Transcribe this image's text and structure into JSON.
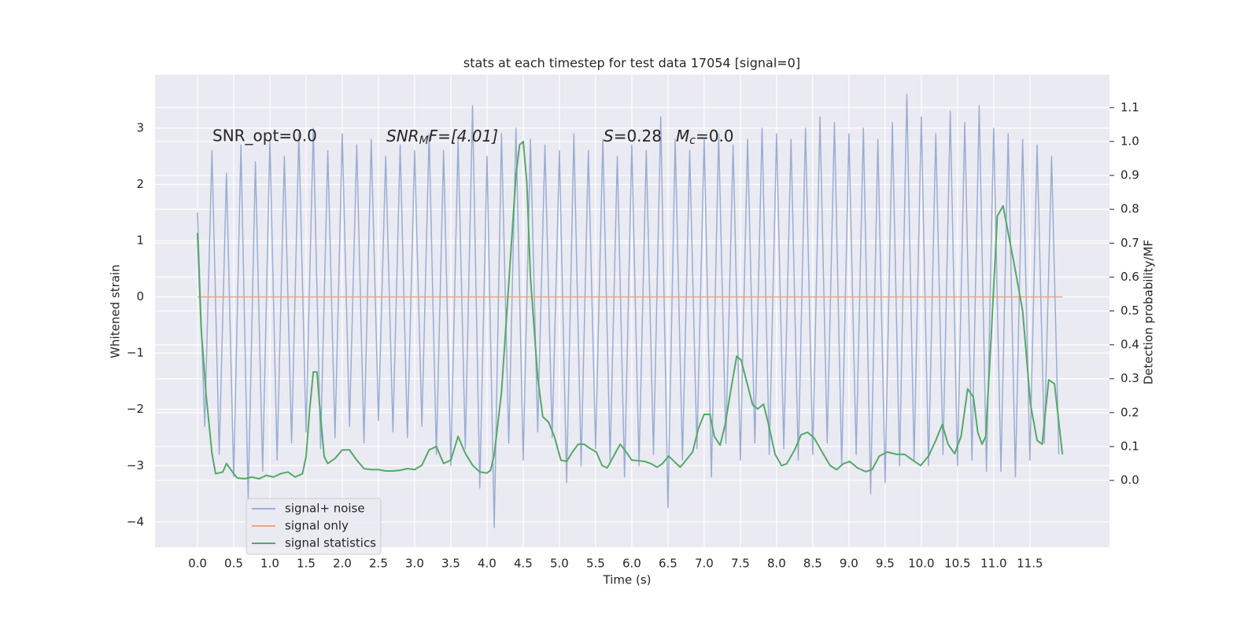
{
  "chart_data": {
    "type": "line",
    "title": "stats at each timestep for test data 17054 [signal=0]",
    "xlabel": "Time (s)",
    "ylabel": "Whitened strain",
    "y2label": "Detection probability/MF",
    "annotations": {
      "snr_opt": "SNR_opt=0.0",
      "snr_mf": [
        "SNR",
        "M",
        "F=[4.01]"
      ],
      "s": [
        "S",
        "=0.28"
      ],
      "mc": [
        "M",
        "c",
        "=0.0"
      ]
    },
    "xlim": [
      -0.587,
      12.6
    ],
    "ylim": [
      -4.45,
      3.95
    ],
    "y2lim": [
      -0.197,
      1.197
    ],
    "xticks": [
      {
        "value": 0,
        "label": "0.0"
      },
      0.5,
      {
        "value": 1,
        "label": "1.0"
      },
      1.5,
      {
        "value": 2,
        "label": "2.0"
      },
      2.5,
      {
        "value": 3,
        "label": "3.0"
      },
      3.5,
      {
        "value": 4,
        "label": "4.0"
      },
      4.5,
      {
        "value": 5,
        "label": "5.0"
      },
      5.5,
      {
        "value": 6,
        "label": "6.0"
      },
      6.5,
      {
        "value": 7,
        "label": "7.0"
      },
      7.5,
      {
        "value": 8,
        "label": "8.0"
      },
      8.5,
      {
        "value": 9,
        "label": "9.0"
      },
      9.5,
      {
        "value": 10,
        "label": "10.0"
      },
      10.5,
      {
        "value": 11,
        "label": "11.0"
      },
      11.5
    ],
    "yticks": [
      {
        "value": -4,
        "label": "−4"
      },
      {
        "value": -3,
        "label": "−3"
      },
      {
        "value": -2,
        "label": "−2"
      },
      {
        "value": -1,
        "label": "−1"
      },
      0,
      1,
      2,
      3
    ],
    "y2ticks": [
      {
        "value": 0,
        "label": "0.0"
      },
      0.1,
      0.2,
      0.3,
      0.4,
      0.5,
      0.6,
      0.7,
      0.8,
      0.9,
      {
        "value": 1,
        "label": "1.0"
      },
      1.1
    ],
    "grid": true,
    "legend": "lower left",
    "series": [
      {
        "name": "signal+ noise",
        "color": "#9badd3",
        "x": [
          0,
          0.1,
          0.2,
          0.3,
          0.4,
          0.5,
          0.6,
          0.7,
          0.8,
          0.9,
          1,
          1.1,
          1.2,
          1.3,
          1.4,
          1.5,
          1.6,
          1.7,
          1.8,
          1.9,
          2,
          2.1,
          2.2,
          2.3,
          2.4,
          2.5,
          2.6,
          2.7,
          2.8,
          2.9,
          3,
          3.1,
          3.2,
          3.3,
          3.4,
          3.5,
          3.6,
          3.7,
          3.8,
          3.9,
          4,
          4.1,
          4.2,
          4.3,
          4.4,
          4.5,
          4.6,
          4.7,
          4.8,
          4.9,
          5,
          5.1,
          5.2,
          5.3,
          5.4,
          5.5,
          5.6,
          5.7,
          5.8,
          5.9,
          6,
          6.1,
          6.2,
          6.3,
          6.4,
          6.5,
          6.6,
          6.7,
          6.8,
          6.9,
          7,
          7.1,
          7.2,
          7.3,
          7.4,
          7.5,
          7.6,
          7.7,
          7.8,
          7.9,
          8,
          8.1,
          8.2,
          8.3,
          8.4,
          8.5,
          8.6,
          8.7,
          8.8,
          8.9,
          9,
          9.1,
          9.2,
          9.3,
          9.4,
          9.5,
          9.6,
          9.7,
          9.8,
          9.9,
          10,
          10.1,
          10.2,
          10.3,
          10.4,
          10.5,
          10.6,
          10.7,
          10.8,
          10.9,
          11,
          11.1,
          11.2,
          11.3,
          11.4,
          11.5,
          11.6,
          11.7,
          11.8,
          11.9
        ],
        "values": [
          1.5,
          -2.3,
          2.6,
          -2.8,
          2.2,
          -3.2,
          2.7,
          -3.6,
          2.4,
          -3.1,
          2.8,
          -2.9,
          2.5,
          -2.6,
          2.9,
          -2.4,
          3.0,
          -2.7,
          2.6,
          -2.5,
          2.9,
          -2.3,
          2.7,
          -2.6,
          2.8,
          -2.2,
          2.5,
          -2.4,
          2.7,
          -2.5,
          2.6,
          -2.3,
          2.9,
          -2.8,
          2.6,
          -3.0,
          2.8,
          -2.7,
          3.4,
          -3.4,
          2.5,
          -4.1,
          2.9,
          -2.6,
          3.0,
          -2.9,
          2.8,
          -2.4,
          2.7,
          -2.5,
          2.6,
          -3.3,
          2.9,
          -3.0,
          2.6,
          -2.7,
          2.8,
          -2.9,
          2.5,
          -3.2,
          2.7,
          -3.0,
          2.6,
          -2.8,
          3.2,
          -3.75,
          2.8,
          -2.9,
          2.6,
          -2.7,
          2.8,
          -3.2,
          2.9,
          -2.6,
          2.7,
          -2.9,
          2.8,
          -2.6,
          3.0,
          -2.8,
          2.9,
          -2.7,
          2.8,
          -2.9,
          3.0,
          -2.8,
          3.2,
          -2.6,
          3.1,
          -3.0,
          2.9,
          -2.8,
          3.0,
          -3.5,
          2.8,
          -3.3,
          3.1,
          -3.0,
          3.6,
          -2.9,
          3.2,
          -3.0,
          2.9,
          -2.8,
          3.3,
          -3.0,
          3.1,
          -2.9,
          3.4,
          -3.1,
          3.0,
          -3.1,
          2.9,
          -3.2,
          2.8,
          -2.9,
          2.7,
          -2.6,
          2.5,
          -2.8
        ]
      },
      {
        "name": "signal only",
        "color": "#e8a888",
        "x": [
          0,
          11.95
        ],
        "values": [
          0,
          0
        ]
      },
      {
        "name": "signal statistics",
        "color": "#55a868",
        "axis": "y2",
        "x": [
          0,
          0.05,
          0.12,
          0.2,
          0.25,
          0.35,
          0.4,
          0.5,
          0.55,
          0.65,
          0.75,
          0.85,
          0.95,
          1.05,
          1.15,
          1.25,
          1.35,
          1.45,
          1.5,
          1.55,
          1.6,
          1.65,
          1.7,
          1.75,
          1.8,
          1.9,
          2.0,
          2.1,
          2.2,
          2.3,
          2.4,
          2.5,
          2.6,
          2.7,
          2.8,
          2.9,
          3.0,
          3.1,
          3.2,
          3.3,
          3.4,
          3.5,
          3.6,
          3.7,
          3.8,
          3.9,
          4.0,
          4.05,
          4.1,
          4.2,
          4.3,
          4.4,
          4.45,
          4.5,
          4.55,
          4.6,
          4.7,
          4.77,
          4.85,
          4.93,
          5.02,
          5.1,
          5.18,
          5.26,
          5.34,
          5.42,
          5.51,
          5.59,
          5.66,
          5.75,
          5.84,
          5.91,
          6.0,
          6.1,
          6.18,
          6.27,
          6.35,
          6.42,
          6.51,
          6.6,
          6.67,
          6.75,
          6.84,
          6.92,
          7.0,
          7.08,
          7.14,
          7.22,
          7.29,
          7.38,
          7.45,
          7.51,
          7.6,
          7.67,
          7.74,
          7.82,
          7.89,
          7.98,
          8.07,
          8.14,
          8.25,
          8.34,
          8.43,
          8.52,
          8.63,
          8.74,
          8.83,
          8.92,
          9.01,
          9.12,
          9.23,
          9.32,
          9.42,
          9.53,
          9.66,
          9.77,
          9.88,
          9.99,
          10.1,
          10.2,
          10.29,
          10.37,
          10.46,
          10.55,
          10.64,
          10.72,
          10.78,
          10.84,
          10.89,
          10.97,
          11.05,
          11.13,
          11.21,
          11.29,
          11.4,
          11.51,
          11.6,
          11.67,
          11.76,
          11.84,
          11.95
        ],
        "values": [
          0.73,
          0.45,
          0.25,
          0.08,
          0.02,
          0.025,
          0.05,
          0.02,
          0.007,
          0.005,
          0.01,
          0.005,
          0.015,
          0.01,
          0.02,
          0.025,
          0.01,
          0.02,
          0.07,
          0.21,
          0.32,
          0.32,
          0.19,
          0.07,
          0.05,
          0.065,
          0.09,
          0.09,
          0.06,
          0.035,
          0.032,
          0.032,
          0.028,
          0.028,
          0.03,
          0.035,
          0.032,
          0.045,
          0.09,
          0.1,
          0.05,
          0.06,
          0.13,
          0.08,
          0.045,
          0.025,
          0.022,
          0.03,
          0.077,
          0.26,
          0.58,
          0.9,
          0.99,
          1.0,
          0.88,
          0.6,
          0.304,
          0.188,
          0.172,
          0.13,
          0.06,
          0.056,
          0.084,
          0.107,
          0.107,
          0.095,
          0.084,
          0.044,
          0.037,
          0.072,
          0.107,
          0.088,
          0.06,
          0.058,
          0.056,
          0.049,
          0.039,
          0.049,
          0.072,
          0.053,
          0.039,
          0.06,
          0.084,
          0.153,
          0.195,
          0.195,
          0.13,
          0.104,
          0.165,
          0.281,
          0.367,
          0.355,
          0.281,
          0.223,
          0.211,
          0.225,
          0.165,
          0.077,
          0.044,
          0.049,
          0.09,
          0.135,
          0.142,
          0.125,
          0.084,
          0.044,
          0.032,
          0.049,
          0.056,
          0.037,
          0.026,
          0.032,
          0.072,
          0.084,
          0.077,
          0.077,
          0.06,
          0.044,
          0.072,
          0.118,
          0.165,
          0.107,
          0.079,
          0.13,
          0.27,
          0.246,
          0.142,
          0.107,
          0.13,
          0.443,
          0.78,
          0.81,
          0.72,
          0.63,
          0.5,
          0.223,
          0.118,
          0.107,
          0.297,
          0.285,
          0.077
        ]
      }
    ]
  }
}
